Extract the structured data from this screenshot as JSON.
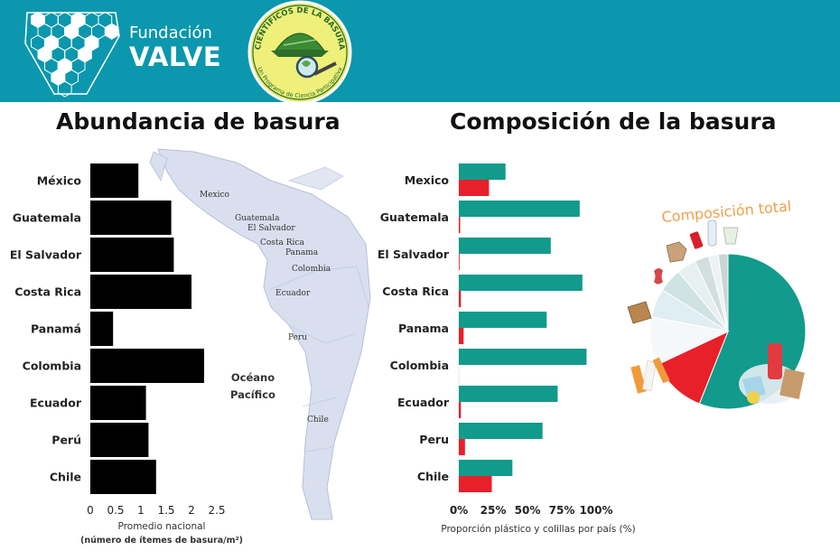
{
  "header": {
    "brand_line1": "Fundación",
    "brand_line2": "VALVE",
    "badge_top": "CIENTÍFICOS DE LA BASURA",
    "badge_bottom": "Un Programa de Ciencia Participativa"
  },
  "colors": {
    "header_bg": "#0b97ad",
    "abundance_bar": "#000000",
    "plastic": "#129a8c",
    "cigarettes": "#e8202a"
  },
  "map_labels": [
    "Mexico",
    "Guatemala",
    "El Salvador",
    "Costa Rica",
    "Panama",
    "Colombia",
    "Ecuador",
    "Peru",
    "Chile"
  ],
  "ocean_label_1": "Océano",
  "ocean_label_2": "Pacífico",
  "chart_data": [
    {
      "type": "bar",
      "orientation": "horizontal",
      "title": "Abundancia de basura",
      "categories": [
        "México",
        "Guatemala",
        "El Salvador",
        "Costa Rica",
        "Panamá",
        "Colombia",
        "Ecuador",
        "Perú",
        "Chile"
      ],
      "values": [
        0.95,
        1.6,
        1.65,
        2.0,
        0.45,
        2.25,
        1.1,
        1.15,
        1.3
      ],
      "xticks": [
        "0",
        "0.5",
        "1",
        "1.5",
        "2",
        "2.5"
      ],
      "xlim": [
        0,
        2.5
      ],
      "xlabel": "Promedio nacional",
      "xlabel2": "(número de ítemes de basura/m²)",
      "color": "#000000"
    },
    {
      "type": "bar",
      "orientation": "horizontal",
      "title": "Composición de la basura",
      "categories": [
        "Mexico",
        "Guatemala",
        "El Salvador",
        "Costa Rica",
        "Panama",
        "Colombia",
        "Ecuador",
        "Peru",
        "Chile"
      ],
      "series": [
        {
          "values": [
            34,
            88,
            67,
            90,
            64,
            93,
            72,
            61,
            39
          ],
          "color": "#129a8c"
        },
        {
          "values": [
            22,
            1,
            0.5,
            1.5,
            3.5,
            0,
            1.5,
            4.5,
            24
          ],
          "color": "#e8202a"
        }
      ],
      "xticks": [
        "0%",
        "25%",
        "50%",
        "75%",
        "100%"
      ],
      "xlim": [
        0,
        100
      ],
      "xlabel": "Proporción plástico y colillas por país (%)"
    },
    {
      "type": "pie",
      "title": "Composición total",
      "values": [
        56,
        12,
        10,
        6,
        5,
        4,
        3,
        2,
        2
      ],
      "colors": [
        "#129a8c",
        "#e8202a",
        "#f4f8fb",
        "#dfeef2",
        "#cfe3e4",
        "#e7eff0",
        "#d3dfde",
        "#edf2f3",
        "#c9d6d6"
      ]
    }
  ]
}
